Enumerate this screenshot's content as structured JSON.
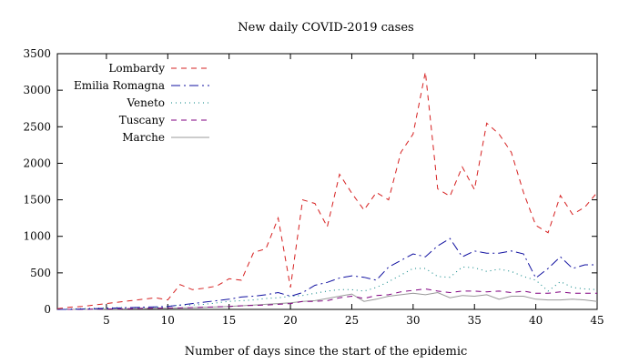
{
  "chart_data": {
    "type": "line",
    "title": "New daily COVID-2019 cases",
    "xlabel": "Number of days since the start of the epidemic",
    "ylabel": "",
    "xlim": [
      1,
      45
    ],
    "ylim": [
      0,
      3500
    ],
    "xticks": [
      5,
      10,
      15,
      20,
      25,
      30,
      35,
      40,
      45
    ],
    "yticks": [
      0,
      500,
      1000,
      1500,
      2000,
      2500,
      3000,
      3500
    ],
    "grid": false,
    "legend_position": "top-left",
    "x": [
      1,
      2,
      3,
      4,
      5,
      6,
      7,
      8,
      9,
      10,
      11,
      12,
      13,
      14,
      15,
      16,
      17,
      18,
      19,
      20,
      21,
      22,
      23,
      24,
      25,
      26,
      27,
      28,
      29,
      30,
      31,
      32,
      33,
      34,
      35,
      36,
      37,
      38,
      39,
      40,
      41,
      42,
      43,
      44,
      45
    ],
    "series": [
      {
        "name": "Lombardy",
        "color": "#d62020",
        "dash": "6,5",
        "values": [
          10,
          30,
          40,
          60,
          80,
          100,
          120,
          140,
          160,
          130,
          340,
          270,
          290,
          320,
          420,
          400,
          780,
          830,
          1250,
          300,
          1500,
          1450,
          1130,
          1850,
          1590,
          1360,
          1600,
          1500,
          2150,
          2400,
          3250,
          1650,
          1550,
          1950,
          1640,
          2550,
          2400,
          2150,
          1600,
          1150,
          1050,
          1560,
          1300,
          1400,
          1600
        ]
      },
      {
        "name": "Emilia Romagna",
        "color": "#1010a0",
        "dash": "10,4,2,4",
        "values": [
          0,
          0,
          5,
          10,
          15,
          20,
          25,
          30,
          35,
          40,
          60,
          80,
          100,
          120,
          140,
          170,
          180,
          200,
          230,
          180,
          230,
          330,
          370,
          430,
          460,
          440,
          400,
          580,
          670,
          760,
          720,
          870,
          970,
          720,
          800,
          770,
          770,
          800,
          760,
          430,
          560,
          720,
          560,
          610,
          610
        ]
      },
      {
        "name": "Veneto",
        "color": "#008080",
        "dash": "1,4",
        "values": [
          0,
          5,
          10,
          15,
          20,
          25,
          25,
          30,
          30,
          40,
          60,
          60,
          70,
          90,
          110,
          120,
          130,
          150,
          160,
          180,
          190,
          220,
          250,
          270,
          270,
          250,
          300,
          380,
          470,
          560,
          560,
          450,
          440,
          580,
          570,
          520,
          550,
          520,
          450,
          400,
          250,
          380,
          300,
          280,
          270
        ]
      },
      {
        "name": "Tuscany",
        "color": "#800080",
        "dash": "6,5",
        "values": [
          0,
          0,
          0,
          5,
          5,
          10,
          10,
          15,
          15,
          20,
          20,
          25,
          30,
          35,
          40,
          50,
          55,
          60,
          70,
          80,
          110,
          110,
          120,
          160,
          180,
          150,
          190,
          200,
          240,
          260,
          280,
          250,
          230,
          250,
          250,
          240,
          250,
          230,
          250,
          220,
          220,
          240,
          220,
          220,
          220
        ]
      },
      {
        "name": "Marche",
        "color": "#999999",
        "dash": "",
        "values": [
          0,
          0,
          0,
          0,
          5,
          5,
          10,
          10,
          15,
          15,
          20,
          25,
          30,
          35,
          40,
          50,
          60,
          70,
          80,
          90,
          110,
          120,
          150,
          180,
          210,
          110,
          140,
          180,
          200,
          220,
          200,
          230,
          160,
          190,
          180,
          200,
          140,
          180,
          180,
          140,
          130,
          130,
          140,
          130,
          110
        ]
      }
    ]
  }
}
